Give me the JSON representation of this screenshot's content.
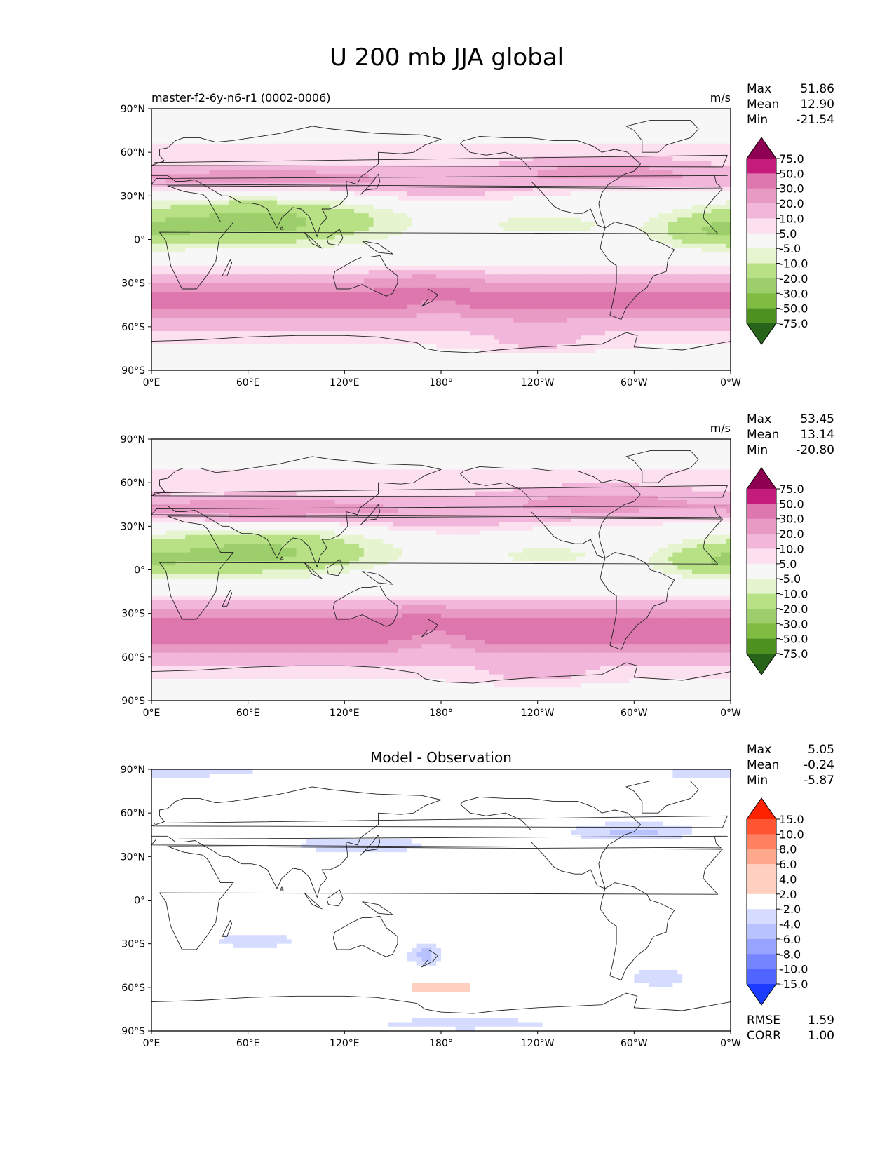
{
  "figure": {
    "title": "U 200 mb JJA global"
  },
  "lat_labels": [
    "90°N",
    "60°N",
    "30°N",
    "0°",
    "30°S",
    "60°S",
    "90°S"
  ],
  "lon_labels": [
    "0°E",
    "60°E",
    "120°E",
    "180°",
    "120°W",
    "60°W",
    "0°W"
  ],
  "colors": {
    "field_cbar": [
      "#8e0152",
      "#c51b7d",
      "#de77ae",
      "#e899c4",
      "#f1b6da",
      "#fde0ef",
      "#f7f7f7",
      "#e6f5d0",
      "#b8e186",
      "#9ccf6b",
      "#7fbc41",
      "#4d9221",
      "#276419"
    ],
    "diff_cbar": [
      "#ff2200",
      "#ff5533",
      "#ff8060",
      "#ffa88c",
      "#ffd0c0",
      "#ffffff",
      "#d6dcff",
      "#b8c2ff",
      "#97a4ff",
      "#7585ff",
      "#5065ff",
      "#1b3cff"
    ]
  },
  "panels": [
    {
      "id": "test",
      "left_title": "master-f2-6y-n6-r1 (0002-0006)",
      "center_title": "",
      "units": "m/s",
      "stats": [
        {
          "label": "Max",
          "value": "51.86"
        },
        {
          "label": "Mean",
          "value": "12.90"
        },
        {
          "label": "Min",
          "value": "-21.54"
        }
      ],
      "colorbar_type": "field",
      "colorbar_ticks": [
        "75.0",
        "50.0",
        "30.0",
        "20.0",
        "10.0",
        "5.0",
        "-5.0",
        "-10.0",
        "-20.0",
        "-30.0",
        "-50.0",
        "-75.0"
      ],
      "footer_stats": []
    },
    {
      "id": "reference",
      "left_title": "",
      "center_title": "",
      "units": "m/s",
      "stats": [
        {
          "label": "Max",
          "value": "53.45"
        },
        {
          "label": "Mean",
          "value": "13.14"
        },
        {
          "label": "Min",
          "value": "-20.80"
        }
      ],
      "colorbar_type": "field",
      "colorbar_ticks": [
        "75.0",
        "50.0",
        "30.0",
        "20.0",
        "10.0",
        "5.0",
        "-5.0",
        "-10.0",
        "-20.0",
        "-30.0",
        "-50.0",
        "-75.0"
      ],
      "footer_stats": []
    },
    {
      "id": "diff",
      "left_title": "",
      "center_title": "Model - Observation",
      "units": "",
      "stats": [
        {
          "label": "Max",
          "value": "5.05"
        },
        {
          "label": "Mean",
          "value": "-0.24"
        },
        {
          "label": "Min",
          "value": "-5.87"
        }
      ],
      "colorbar_type": "diff",
      "colorbar_ticks": [
        "15.0",
        "10.0",
        "8.0",
        "6.0",
        "4.0",
        "2.0",
        "-2.0",
        "-4.0",
        "-6.0",
        "-8.0",
        "-10.0",
        "-15.0"
      ],
      "footer_stats": [
        {
          "label": "RMSE",
          "value": "1.59"
        },
        {
          "label": "CORR",
          "value": "1.00"
        }
      ]
    }
  ]
}
